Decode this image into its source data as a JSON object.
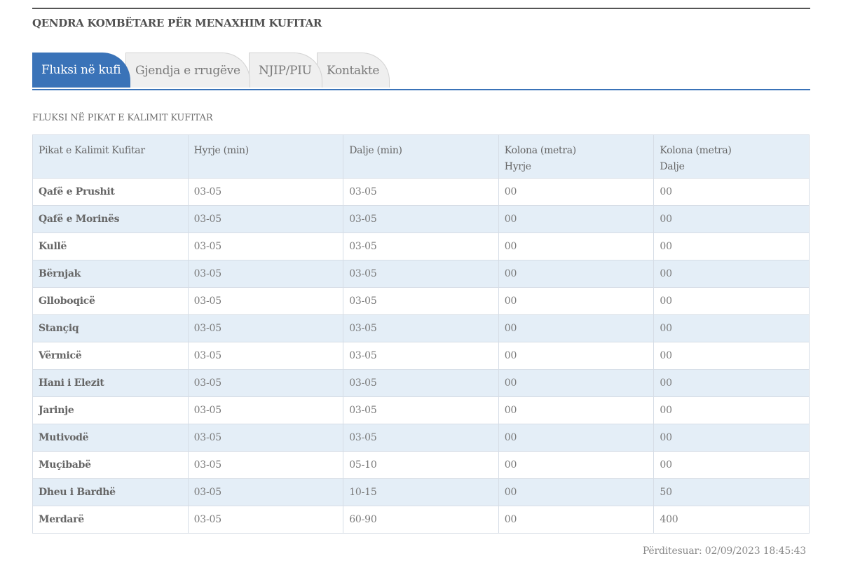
{
  "site": {
    "title": "QENDRA KOMBËTARE PËR MENAXHIM KUFITAR"
  },
  "tabs": [
    {
      "label": "Fluksi në kufi",
      "active": true
    },
    {
      "label": "Gjendja e rrugëve",
      "active": false
    },
    {
      "label": "NJIP/PIU",
      "active": false
    },
    {
      "label": "Kontakte",
      "active": false
    }
  ],
  "section": {
    "heading": "FLUKSI NË PIKAT E KALIMIT KUFITAR"
  },
  "table": {
    "headers": [
      {
        "line1": "Pikat e Kalimit Kufitar",
        "line2": ""
      },
      {
        "line1": "Hyrje (min)",
        "line2": ""
      },
      {
        "line1": "Dalje (min)",
        "line2": ""
      },
      {
        "line1": "Kolona (metra)",
        "line2": "Hyrje"
      },
      {
        "line1": "Kolona (metra)",
        "line2": "Dalje"
      }
    ],
    "rows": [
      [
        "Qafë e Prushit",
        "03-05",
        "03-05",
        "00",
        "00"
      ],
      [
        "Qafë e Morinës",
        "03-05",
        "03-05",
        "00",
        "00"
      ],
      [
        "Kullë",
        "03-05",
        "03-05",
        "00",
        "00"
      ],
      [
        "Bërnjak",
        "03-05",
        "03-05",
        "00",
        "00"
      ],
      [
        "Glloboqicë",
        "03-05",
        "03-05",
        "00",
        "00"
      ],
      [
        "Stançiq",
        "03-05",
        "03-05",
        "00",
        "00"
      ],
      [
        "Vërmicë",
        "03-05",
        "03-05",
        "00",
        "00"
      ],
      [
        "Hani i Elezit",
        "03-05",
        "03-05",
        "00",
        "00"
      ],
      [
        "Jarinje",
        "03-05",
        "03-05",
        "00",
        "00"
      ],
      [
        "Mutivodë",
        "03-05",
        "03-05",
        "00",
        "00"
      ],
      [
        "Muçibabë",
        "03-05",
        "05-10",
        "00",
        "00"
      ],
      [
        "Dheu i Bardhë",
        "03-05",
        "10-15",
        "00",
        "50"
      ],
      [
        "Merdarë",
        "03-05",
        "60-90",
        "00",
        "400"
      ]
    ]
  },
  "footer": {
    "updated": "Përditesuar: 02/09/2023 18:45:43"
  },
  "colors": {
    "accent": "#3a73b8",
    "row_stripe": "#e4eef7",
    "tab_inactive": "#efefef"
  }
}
